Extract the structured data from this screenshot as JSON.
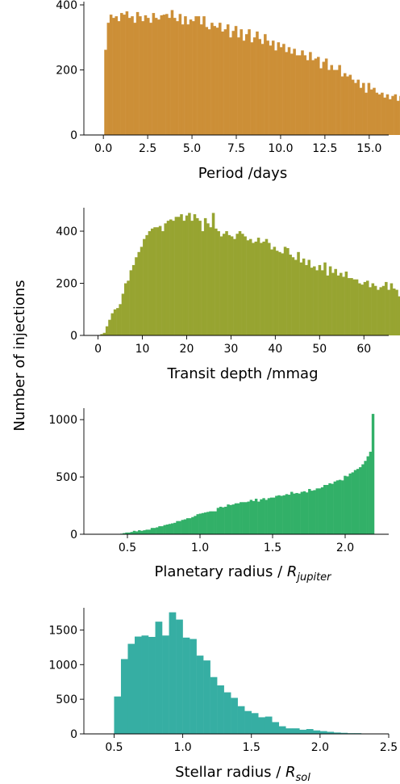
{
  "ylabel": "Number of injections",
  "chart_data": [
    {
      "type": "bar",
      "xlabel": "Period /days",
      "color": "#cc8f37",
      "xlim": [
        -1.1,
        16.1
      ],
      "ylim": [
        0,
        410
      ],
      "xticks": [
        0.0,
        2.5,
        5.0,
        7.5,
        10.0,
        12.5,
        15.0
      ],
      "xtick_labels": [
        "0.0",
        "2.5",
        "5.0",
        "7.5",
        "10.0",
        "12.5",
        "15.0"
      ],
      "yticks": [
        0,
        200,
        400
      ],
      "ytick_labels": [
        "0",
        "200",
        "400"
      ],
      "bin_start": 0.05,
      "bin_width": 0.15,
      "values": [
        262,
        345,
        370,
        360,
        365,
        350,
        375,
        370,
        380,
        360,
        365,
        345,
        378,
        365,
        350,
        368,
        360,
        345,
        375,
        360,
        355,
        368,
        370,
        372,
        360,
        384,
        360,
        350,
        372,
        340,
        365,
        340,
        355,
        350,
        365,
        365,
        340,
        365,
        332,
        325,
        345,
        335,
        330,
        345,
        318,
        325,
        340,
        300,
        320,
        335,
        300,
        325,
        290,
        310,
        325,
        285,
        300,
        318,
        295,
        280,
        310,
        290,
        275,
        290,
        260,
        285,
        270,
        280,
        255,
        270,
        250,
        265,
        245,
        245,
        260,
        245,
        230,
        255,
        230,
        235,
        240,
        205,
        225,
        235,
        200,
        215,
        200,
        200,
        215,
        180,
        190,
        180,
        185,
        170,
        160,
        170,
        145,
        160,
        130,
        160,
        140,
        145,
        130,
        125,
        130,
        115,
        125,
        110,
        120,
        125,
        105,
        120,
        110,
        100,
        115
      ]
    },
    {
      "type": "bar",
      "xlabel": "Transit depth /mmag",
      "color": "#97a431",
      "xlim": [
        -3.2,
        65.6
      ],
      "ylim": [
        0,
        490
      ],
      "xticks": [
        0,
        10,
        20,
        30,
        40,
        50,
        60
      ],
      "xtick_labels": [
        "0",
        "10",
        "20",
        "30",
        "40",
        "50",
        "60"
      ],
      "yticks": [
        0,
        200,
        400
      ],
      "ytick_labels": [
        "0",
        "200",
        "400"
      ],
      "bin_start": 0.5,
      "bin_width": 0.6,
      "values": [
        5,
        10,
        35,
        60,
        85,
        100,
        105,
        120,
        160,
        200,
        210,
        250,
        270,
        300,
        320,
        340,
        370,
        385,
        400,
        410,
        415,
        415,
        420,
        400,
        430,
        440,
        445,
        440,
        455,
        455,
        465,
        440,
        460,
        470,
        440,
        465,
        450,
        440,
        400,
        450,
        430,
        415,
        470,
        410,
        400,
        380,
        390,
        400,
        385,
        380,
        370,
        390,
        400,
        390,
        380,
        365,
        370,
        355,
        360,
        375,
        355,
        360,
        370,
        355,
        330,
        340,
        325,
        320,
        315,
        340,
        335,
        310,
        300,
        290,
        320,
        280,
        295,
        270,
        290,
        260,
        265,
        250,
        270,
        250,
        280,
        230,
        265,
        240,
        255,
        230,
        240,
        225,
        245,
        220,
        220,
        215,
        215,
        200,
        195,
        205,
        210,
        185,
        200,
        190,
        175,
        185,
        190,
        205,
        175,
        200,
        180,
        175,
        150,
        150,
        140,
        135,
        130,
        125,
        120,
        110,
        130,
        110,
        105,
        100,
        100,
        90,
        95,
        90,
        95,
        85,
        90,
        90,
        85,
        100,
        80,
        90,
        85,
        80,
        75,
        75,
        72,
        70,
        70,
        70,
        70,
        60,
        55,
        15,
        20,
        20,
        15
      ]
    },
    {
      "type": "bar",
      "xlabel": "Planetary radius / ",
      "xlabel_sub": "jupiter",
      "color": "#32b068",
      "xlim": [
        0.2,
        2.3
      ],
      "ylim": [
        0,
        1100
      ],
      "xticks": [
        0.5,
        1.0,
        1.5,
        2.0
      ],
      "xtick_labels": [
        "0.5",
        "1.0",
        "1.5",
        "2.0"
      ],
      "yticks": [
        0,
        500,
        1000
      ],
      "ytick_labels": [
        "0",
        "500",
        "1000"
      ],
      "bin_start": 0.45,
      "bin_width": 0.0175,
      "values": [
        5,
        10,
        15,
        15,
        20,
        30,
        25,
        35,
        30,
        35,
        40,
        40,
        55,
        55,
        60,
        70,
        70,
        80,
        85,
        90,
        95,
        100,
        115,
        115,
        125,
        130,
        140,
        140,
        150,
        160,
        175,
        180,
        185,
        190,
        195,
        200,
        200,
        200,
        230,
        240,
        235,
        240,
        260,
        255,
        260,
        270,
        270,
        280,
        280,
        280,
        285,
        300,
        290,
        310,
        285,
        305,
        315,
        300,
        315,
        320,
        320,
        335,
        340,
        335,
        340,
        350,
        345,
        370,
        355,
        360,
        355,
        370,
        375,
        365,
        395,
        380,
        385,
        400,
        400,
        410,
        430,
        430,
        445,
        440,
        460,
        470,
        475,
        470,
        510,
        505,
        530,
        540,
        560,
        570,
        585,
        610,
        640,
        680,
        720,
        1050
      ]
    },
    {
      "type": "bar",
      "xlabel": "Stellar radius / ",
      "xlabel_sub": "sol",
      "color": "#36aea3",
      "xlim": [
        0.28,
        2.5
      ],
      "ylim": [
        0,
        1820
      ],
      "xticks": [
        0.5,
        1.0,
        1.5,
        2.0,
        2.5
      ],
      "xtick_labels": [
        "0.5",
        "1.0",
        "1.5",
        "2.0",
        "2.5"
      ],
      "yticks": [
        0,
        500,
        1000,
        1500
      ],
      "ytick_labels": [
        "0",
        "500",
        "1000",
        "1500"
      ],
      "bin_start": 0.5,
      "bin_width": 0.05,
      "values": [
        540,
        1080,
        1300,
        1405,
        1420,
        1400,
        1620,
        1420,
        1755,
        1650,
        1390,
        1370,
        1130,
        1060,
        820,
        700,
        600,
        520,
        400,
        330,
        300,
        240,
        250,
        170,
        110,
        80,
        80,
        60,
        70,
        50,
        40,
        30,
        20,
        15,
        10,
        10,
        5,
        5,
        5,
        5
      ]
    }
  ]
}
